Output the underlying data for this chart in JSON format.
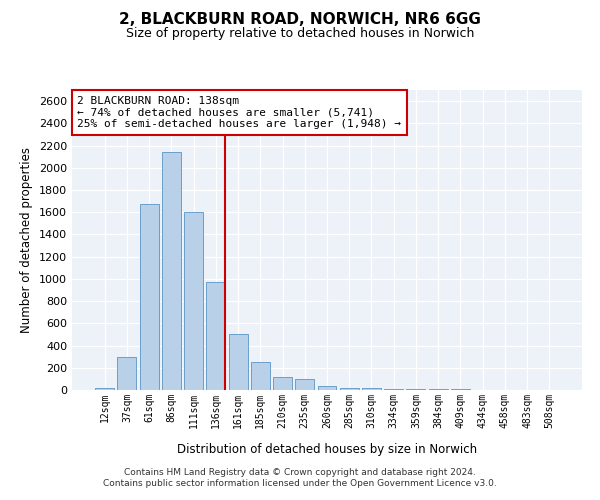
{
  "title_line1": "2, BLACKBURN ROAD, NORWICH, NR6 6GG",
  "title_line2": "Size of property relative to detached houses in Norwich",
  "xlabel": "Distribution of detached houses by size in Norwich",
  "ylabel": "Number of detached properties",
  "categories": [
    "12sqm",
    "37sqm",
    "61sqm",
    "86sqm",
    "111sqm",
    "136sqm",
    "161sqm",
    "185sqm",
    "210sqm",
    "235sqm",
    "260sqm",
    "285sqm",
    "310sqm",
    "334sqm",
    "359sqm",
    "384sqm",
    "409sqm",
    "434sqm",
    "458sqm",
    "483sqm",
    "508sqm"
  ],
  "values": [
    20,
    300,
    1670,
    2140,
    1600,
    970,
    500,
    250,
    120,
    100,
    35,
    20,
    15,
    10,
    5,
    5,
    5,
    3,
    3,
    2,
    2
  ],
  "bar_color": "#b8d0e8",
  "bar_edgecolor": "#6aa0cc",
  "vline_index": 5,
  "vline_color": "#cc0000",
  "annotation_text": "2 BLACKBURN ROAD: 138sqm\n← 74% of detached houses are smaller (5,741)\n25% of semi-detached houses are larger (1,948) →",
  "annotation_box_edgecolor": "#cc0000",
  "annotation_box_facecolor": "#ffffff",
  "ylim": [
    0,
    2700
  ],
  "yticks": [
    0,
    200,
    400,
    600,
    800,
    1000,
    1200,
    1400,
    1600,
    1800,
    2000,
    2200,
    2400,
    2600
  ],
  "bg_color": "#edf2f9",
  "footer_line1": "Contains HM Land Registry data © Crown copyright and database right 2024.",
  "footer_line2": "Contains public sector information licensed under the Open Government Licence v3.0."
}
